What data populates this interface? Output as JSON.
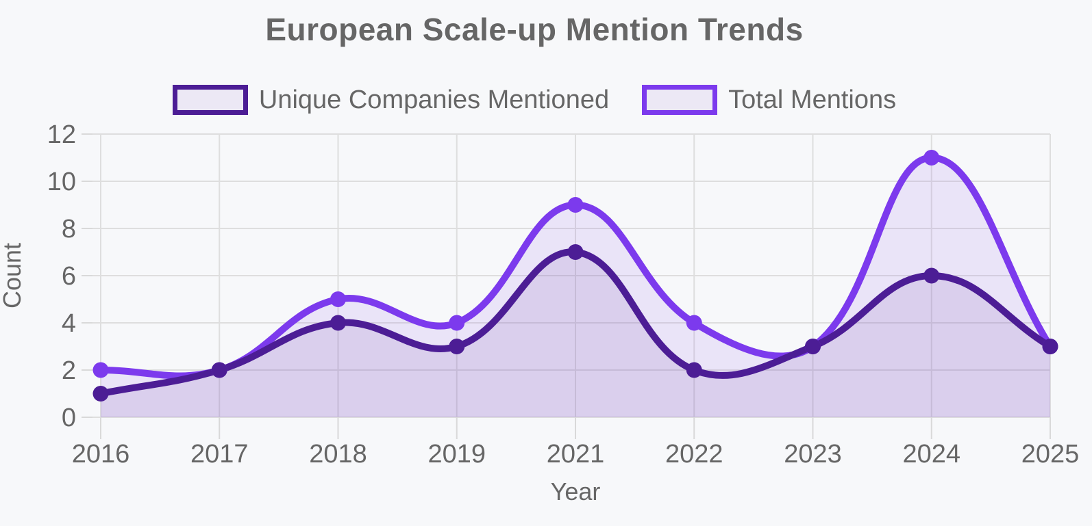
{
  "page": {
    "background_color": "#F7F8FA"
  },
  "chart_data": {
    "type": "line",
    "title": "European Scale-up Mention Trends",
    "xlabel": "Year",
    "ylabel": "Count",
    "categories": [
      "2016",
      "2017",
      "2018",
      "2019",
      "2021",
      "2022",
      "2023",
      "2024",
      "2025"
    ],
    "series": [
      {
        "name": "Unique Companies Mentioned",
        "values": [
          1,
          2,
          4,
          3,
          7,
          2,
          3,
          6,
          3
        ],
        "color": "#4C1D95",
        "fill_color": "rgba(76,29,149,0.10)"
      },
      {
        "name": "Total Mentions",
        "values": [
          2,
          2,
          5,
          4,
          9,
          4,
          3,
          11,
          3
        ],
        "color": "#7C3AED",
        "fill_color": "rgba(124,58,237,0.10)"
      }
    ],
    "ylim": [
      0,
      12
    ],
    "yticks": [
      0,
      2,
      4,
      6,
      8,
      10,
      12
    ],
    "grid": true,
    "legend_position": "top",
    "line_tension": 0.4,
    "area_fill": true
  },
  "styles": {
    "title_color": "#666666",
    "tick_color": "#666666",
    "axis_title_color": "#666666",
    "grid_color": "#DEDEDE",
    "tick_mark_color": "#D9D9D9",
    "legend_box_fill": "#ECE8F5"
  }
}
